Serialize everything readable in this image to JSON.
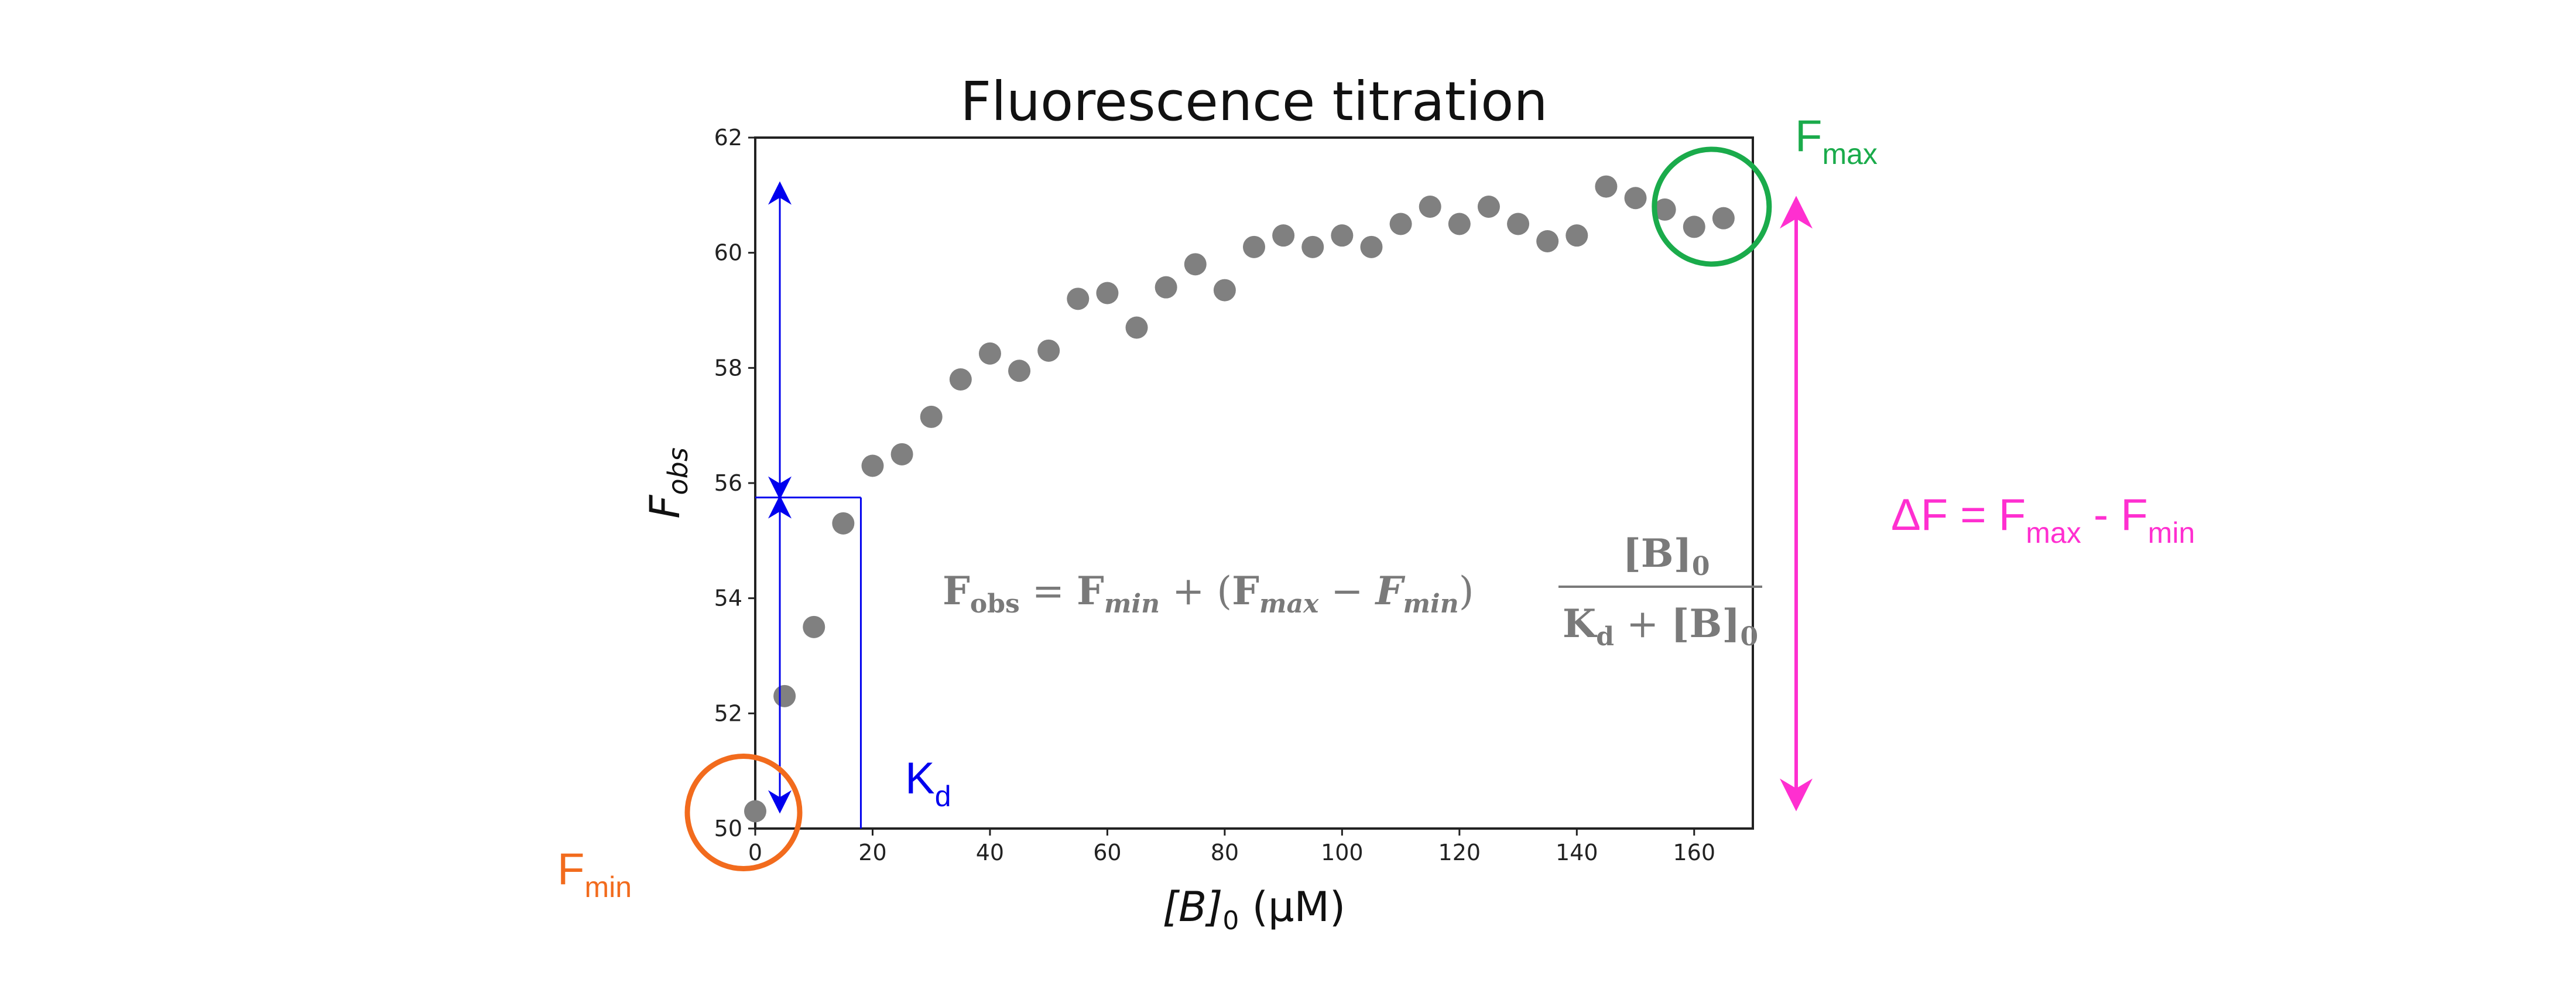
{
  "chart_data": {
    "type": "scatter",
    "title": "Fluorescence titration",
    "xlabel": {
      "main": "[B]",
      "sub": "0",
      "unit": " (μM)"
    },
    "ylabel": {
      "main": "F",
      "sub": "obs"
    },
    "xlim": [
      0,
      170
    ],
    "ylim": [
      50,
      62
    ],
    "xticks": [
      0,
      20,
      40,
      60,
      80,
      100,
      120,
      140,
      160
    ],
    "yticks": [
      50,
      52,
      54,
      56,
      58,
      60,
      62
    ],
    "marker_color": "#808080",
    "series": [
      {
        "name": "F_obs",
        "x": [
          0,
          5,
          10,
          15,
          20,
          25,
          30,
          35,
          40,
          45,
          50,
          55,
          60,
          65,
          70,
          75,
          80,
          85,
          90,
          95,
          100,
          105,
          110,
          115,
          120,
          125,
          130,
          135,
          140,
          145,
          150,
          155,
          160,
          165
        ],
        "y": [
          50.3,
          52.3,
          53.5,
          55.3,
          56.3,
          56.5,
          57.15,
          57.8,
          58.25,
          57.95,
          58.3,
          59.2,
          59.3,
          58.7,
          59.4,
          59.8,
          59.35,
          60.1,
          60.3,
          60.1,
          60.3,
          60.1,
          60.5,
          60.8,
          60.5,
          60.8,
          60.5,
          60.2,
          60.3,
          61.15,
          60.95,
          60.75,
          60.45,
          60.6
        ]
      }
    ],
    "kd": {
      "x": 18,
      "y": 55.75,
      "color": "#0000ee"
    },
    "fmin_circle": {
      "x": 0,
      "y": 50.3,
      "color": "#f26b1d"
    },
    "fmax_circle": {
      "x": 163,
      "y": 60.8,
      "color": "#1aab4b"
    },
    "delta_arrow": {
      "color": "#ff2fd0"
    },
    "annotations": {
      "kd_label": {
        "main": "K",
        "sub": "d"
      },
      "fmin_label": {
        "main": "F",
        "sub": "min"
      },
      "fmax_label": {
        "main": "F",
        "sub": "max"
      },
      "delta_label": {
        "part1": "ΔF = F",
        "sub1": "max",
        "part2": " - F",
        "sub2": "min"
      },
      "equation": {
        "lhs": "F",
        "lhs_sub": "obs",
        "eq": " = ",
        "t1": "F",
        "t1_sub": "min",
        "plus": " + (",
        "t2": "F",
        "t2_sub": "max",
        "minus": " − ",
        "t3": "F",
        "t3_sub": "min",
        "close": ")",
        "num": "[B]",
        "num_sub": "0",
        "den1": "K",
        "den1_sub": "d",
        "den_plus": " + ",
        "den2": "[B]",
        "den2_sub": "0"
      }
    }
  }
}
